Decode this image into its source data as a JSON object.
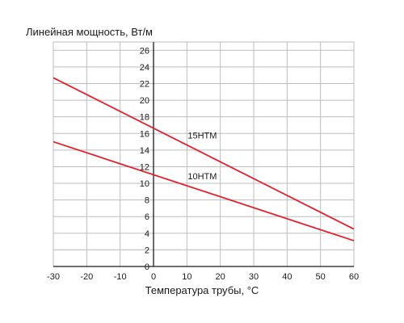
{
  "chart_data": {
    "type": "line",
    "title": "",
    "ylabel": "Линейная мощность, Вт/м",
    "xlabel": "Температура трубы, °С",
    "xlim": [
      -30,
      60
    ],
    "ylim": [
      0,
      27
    ],
    "x_ticks": [
      "-30",
      "-20",
      "-10",
      "0",
      "10",
      "20",
      "30",
      "40",
      "50",
      "60"
    ],
    "y_ticks": [
      "0",
      "2",
      "4",
      "6",
      "8",
      "10",
      "12",
      "14",
      "16",
      "18",
      "20",
      "22",
      "24",
      "26"
    ],
    "grid": true,
    "series_color": "#e3202a",
    "series": [
      {
        "name": "15НТМ",
        "x": [
          -30,
          60
        ],
        "y": [
          22.7,
          4.5
        ]
      },
      {
        "name": "10НТМ",
        "x": [
          -30,
          60
        ],
        "y": [
          15.0,
          3.1
        ]
      }
    ]
  }
}
